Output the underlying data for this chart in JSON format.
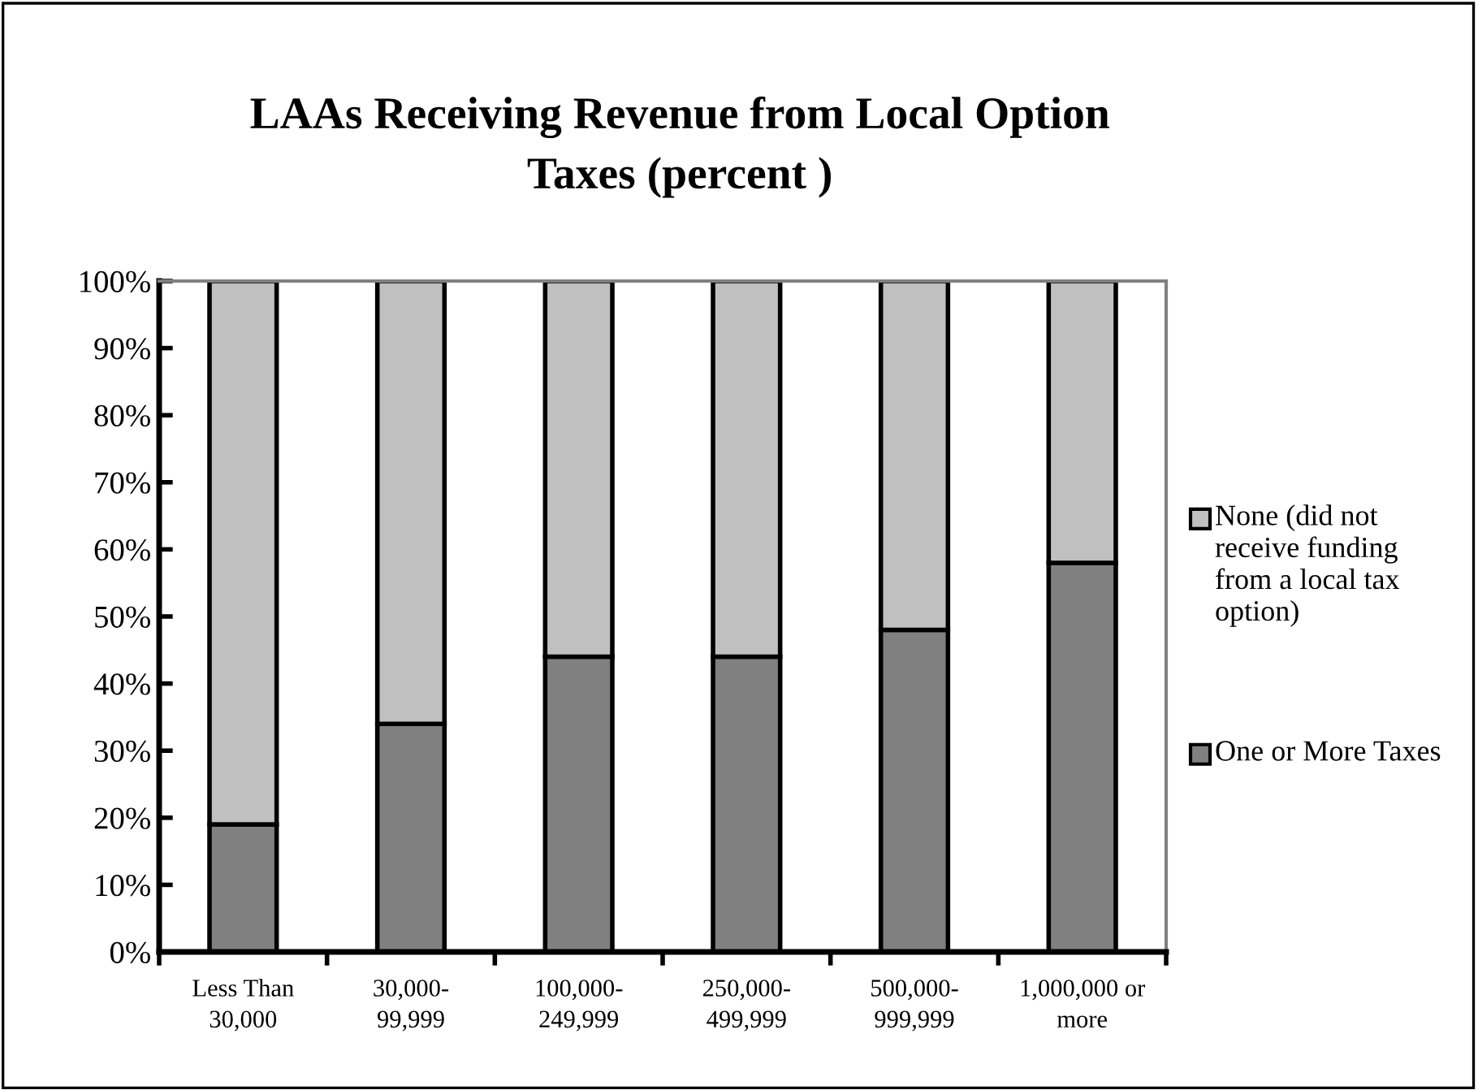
{
  "chart_data": {
    "type": "bar",
    "title": "LAAs Receiving Revenue from Local Option Taxes (percent )",
    "categories": [
      "Less Than 30,000",
      "30,000-99,999",
      "100,000-249,999",
      "250,000-499,999",
      "500,000-999,999",
      "1,000,000 or more"
    ],
    "series": [
      {
        "name": "One or More Taxes",
        "color": "#808080",
        "values": [
          19,
          34,
          44,
          44,
          48,
          58
        ]
      },
      {
        "name": "None (did not receive funding from a local tax option)",
        "color": "#c0c0c0",
        "values": [
          81,
          66,
          56,
          56,
          52,
          42
        ]
      }
    ],
    "stacked": true,
    "ylim": [
      0,
      100
    ],
    "yticks": [
      {
        "value": 0,
        "label": "0%"
      },
      {
        "value": 10,
        "label": "10%"
      },
      {
        "value": 20,
        "label": "20%"
      },
      {
        "value": 30,
        "label": "30%"
      },
      {
        "value": 40,
        "label": "40%"
      },
      {
        "value": 50,
        "label": "50%"
      },
      {
        "value": 60,
        "label": "60%"
      },
      {
        "value": 70,
        "label": "70%"
      },
      {
        "value": 80,
        "label": "80%"
      },
      {
        "value": 90,
        "label": "90%"
      },
      {
        "value": 100,
        "label": "100%"
      }
    ],
    "grid": false,
    "legend": "right"
  }
}
